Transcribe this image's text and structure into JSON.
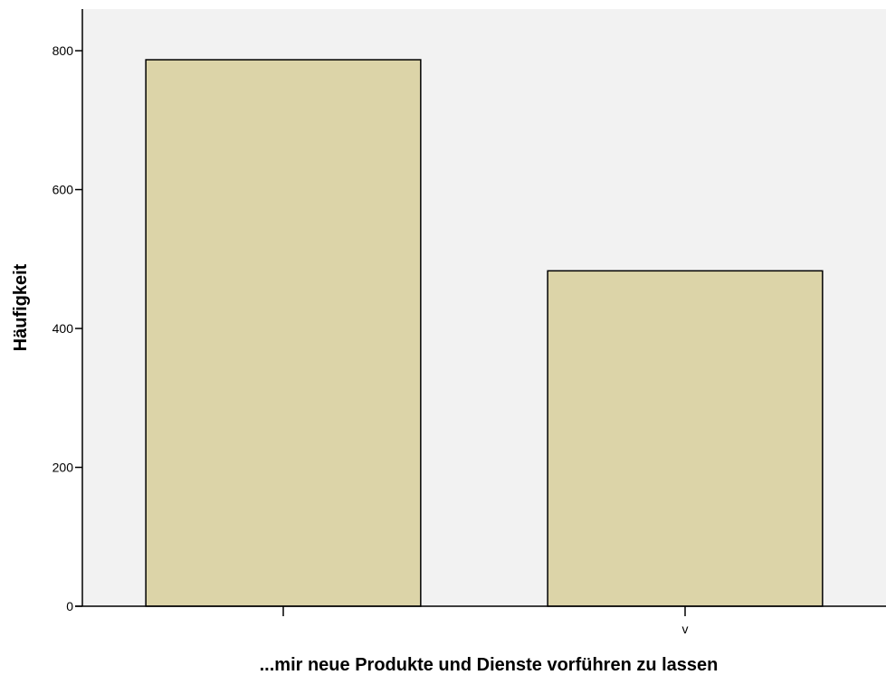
{
  "chart_data": {
    "type": "bar",
    "categories": [
      "",
      "v"
    ],
    "values": [
      787,
      483
    ],
    "title": "",
    "xlabel": "...mir neue Produkte und Dienste vorführen zu lassen",
    "ylabel": "Häufigkeit",
    "ylim": [
      0,
      860
    ],
    "yticks": [
      0,
      200,
      400,
      600,
      800
    ],
    "grid": false,
    "colors": {
      "plot_background": "#f2f2f2",
      "bar_fill": "#dcd4a8",
      "bar_stroke": "#000000"
    }
  }
}
